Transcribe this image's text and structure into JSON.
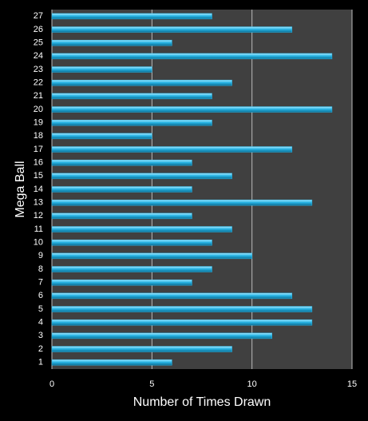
{
  "chart_data": {
    "type": "bar",
    "orientation": "horizontal",
    "x_label": "Number of Times Drawn",
    "y_label": "Mega Ball",
    "categories": [
      "1",
      "2",
      "3",
      "4",
      "5",
      "6",
      "7",
      "8",
      "9",
      "10",
      "11",
      "12",
      "13",
      "14",
      "15",
      "16",
      "17",
      "18",
      "19",
      "20",
      "21",
      "22",
      "23",
      "24",
      "25",
      "26",
      "27"
    ],
    "values": [
      6,
      9,
      11,
      13,
      13,
      12,
      7,
      8,
      10,
      8,
      9,
      7,
      13,
      7,
      9,
      7,
      12,
      5,
      8,
      14,
      8,
      9,
      5,
      14,
      6,
      12,
      8
    ],
    "color": "#29b6e6",
    "xlim": [
      0,
      15
    ],
    "xticks": [
      0,
      5,
      10,
      15
    ],
    "grid": true
  }
}
